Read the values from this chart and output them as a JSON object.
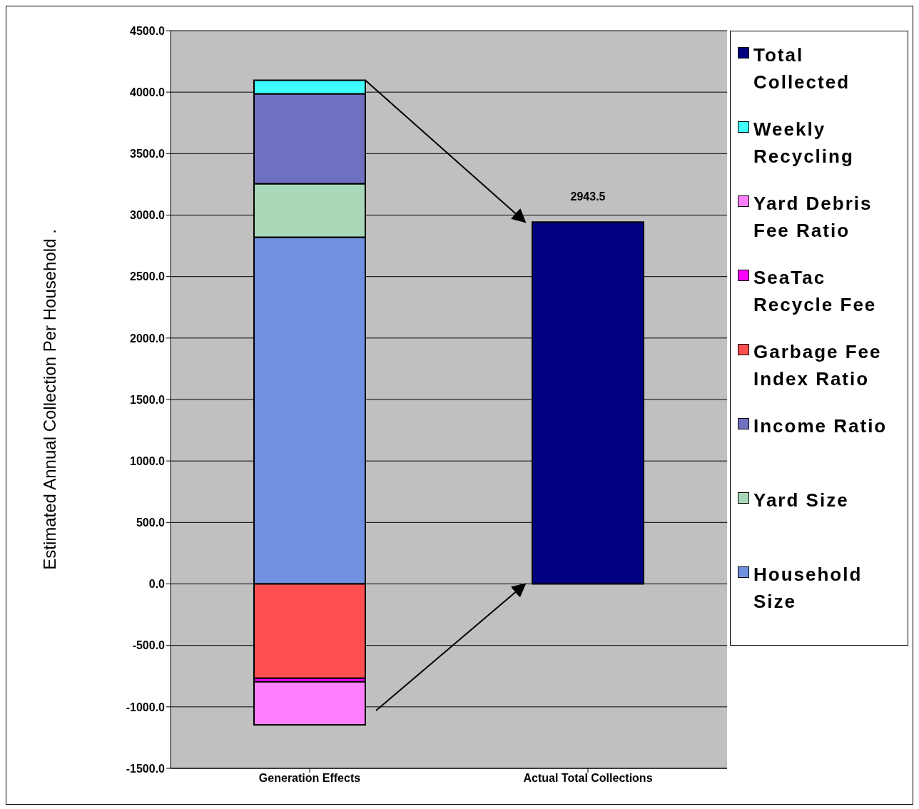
{
  "chart_data": {
    "type": "bar",
    "stacked": true,
    "ylabel": "Estimated Annual Collection Per Household .",
    "categories": [
      "Generation Effects",
      "Actual Total Collections"
    ],
    "series": [
      {
        "name": "Household Size",
        "color": "#7090e0",
        "values": [
          2820,
          null
        ]
      },
      {
        "name": "Yard Size",
        "color": "#a8d8b8",
        "values": [
          435,
          null
        ]
      },
      {
        "name": "Income Ratio",
        "color": "#7070c0",
        "values": [
          731,
          null
        ]
      },
      {
        "name": "Garbage Fee Index Ratio",
        "color": "#ff5050",
        "values": [
          -767,
          null
        ]
      },
      {
        "name": "SeaTac Recycle Fee",
        "color": "#ff00ff",
        "values": [
          -29,
          null
        ]
      },
      {
        "name": "Yard Debris Fee Ratio",
        "color": "#ff80ff",
        "values": [
          -350,
          null
        ]
      },
      {
        "name": "Weekly Recycling",
        "color": "#40ffff",
        "values": [
          111,
          null
        ]
      },
      {
        "name": "Total Collected",
        "color": "#000080",
        "values": [
          null,
          2943.5
        ],
        "value_labels": [
          null,
          "2943.5"
        ]
      }
    ],
    "ylim": [
      -1500,
      4500
    ],
    "yticks": [
      {
        "value": -1500,
        "label": "-1500.0"
      },
      {
        "value": -1000,
        "label": "-1000.0"
      },
      {
        "value": -500,
        "label": "-500.0"
      },
      {
        "value": 0,
        "label": "0.0"
      },
      {
        "value": 500,
        "label": "500.0"
      },
      {
        "value": 1000,
        "label": "1000.0"
      },
      {
        "value": 1500,
        "label": "1500.0"
      },
      {
        "value": 2000,
        "label": "2000.0"
      },
      {
        "value": 2500,
        "label": "2500.0"
      },
      {
        "value": 3000,
        "label": "3000.0"
      },
      {
        "value": 3500,
        "label": "3500.0"
      },
      {
        "value": 4000,
        "label": "4000.0"
      },
      {
        "value": 4500,
        "label": "4500.0"
      }
    ],
    "grid": "y",
    "legend": "right"
  }
}
